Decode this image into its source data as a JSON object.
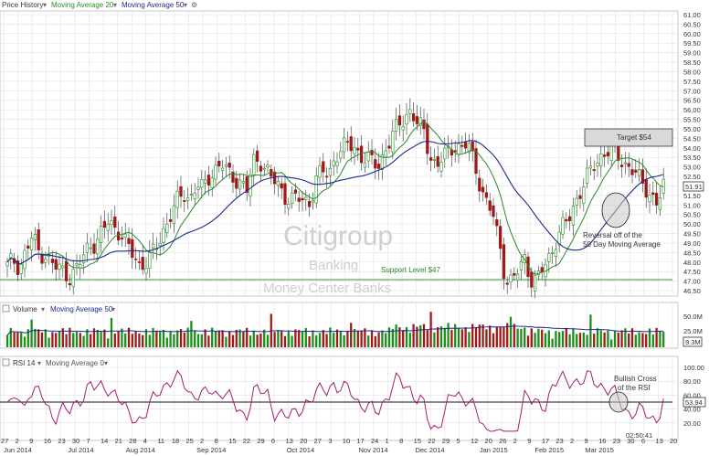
{
  "header": {
    "price_history": "Price History",
    "ma20": "Moving Average 20",
    "ma50": "Moving Average 50",
    "volume": "Volume",
    "vol_ma": "Moving Average 50",
    "rsi": "RSI 14",
    "rsi_ma": "Moving Average 0"
  },
  "watermark": {
    "ticker_name": "Citigroup",
    "sector": "Banking",
    "industry": "Money Center Banks"
  },
  "annotations": {
    "target": "Target $54",
    "support": "Support Level $47",
    "reversal_line1": "Reversal off of the",
    "reversal_line2": "50 Day Moving Average",
    "bullish_line1": "Bullish Cross",
    "bullish_line2": "of the RSI"
  },
  "badges": {
    "last_price": "51.91",
    "volume": "9.3M",
    "rsi": "53.94"
  },
  "timestamp": "02:50:41",
  "colors": {
    "up": "#1a8f1a",
    "down": "#a01818",
    "ma20": "#2a8a2a",
    "ma50": "#1c2a8a",
    "grid": "#e2e2e2",
    "support": "#2a9a2a"
  },
  "chart_data": [
    {
      "type": "candlestick",
      "title": "Price History",
      "ylim": [
        46.5,
        61.0
      ],
      "yticks": [
        "46.50",
        "47.00",
        "47.50",
        "48.00",
        "48.50",
        "49.00",
        "49.50",
        "50.00",
        "50.50",
        "51.00",
        "51.50",
        "52.00",
        "52.50",
        "53.00",
        "53.50",
        "54.00",
        "54.50",
        "55.00",
        "55.50",
        "56.00",
        "56.50",
        "57.00",
        "57.50",
        "58.00",
        "58.50",
        "59.00",
        "59.50",
        "60.00",
        "60.50",
        "61.00"
      ],
      "xticks": [
        "27",
        "2",
        "9",
        "16",
        "23",
        "30",
        "7",
        "14",
        "21",
        "28",
        "4",
        "11",
        "18",
        "25",
        "2",
        "8",
        "15",
        "22",
        "29",
        "6",
        "13",
        "20",
        "27",
        "3",
        "10",
        "17",
        "24",
        "1",
        "8",
        "15",
        "22",
        "29",
        "5",
        "12",
        "20",
        "26",
        "2",
        "9",
        "17",
        "23",
        "2",
        "9",
        "16",
        "23",
        "30",
        "6",
        "13",
        "20"
      ],
      "month_labels": [
        "Jun 2014",
        "Jul 2014",
        "Aug 2014",
        "Sep 2014",
        "Oct 2014",
        "Nov 2014",
        "Dec 2014",
        "Jan 2015",
        "Feb 2015",
        "Mar 2015"
      ],
      "series": [
        {
          "name": "Moving Average 20"
        },
        {
          "name": "Moving Average 50"
        }
      ],
      "key_points": {
        "close": [
          47.8,
          48.1,
          47.7,
          48.6,
          49.4,
          48.5,
          48.4,
          47.9,
          47.7,
          47.5,
          47.2,
          47.6,
          48.3,
          48.9,
          49.0,
          49.5,
          50.2,
          49.8,
          49.5,
          48.8,
          48.4,
          47.8,
          48.0,
          48.4,
          49.1,
          49.8,
          50.6,
          51.2,
          51.6,
          51.3,
          52.1,
          51.8,
          52.5,
          52.9,
          53.2,
          52.6,
          52.4,
          52.2,
          51.8,
          53.2,
          53.4,
          52.9,
          52.4,
          51.9,
          51.5,
          51.3,
          51.4,
          51.1,
          51.2,
          52.4,
          52.8,
          52.5,
          53.7,
          53.9,
          54.2,
          54.0,
          53.6,
          53.4,
          53.2,
          53.1,
          54.0,
          54.6,
          55.2,
          55.6,
          56.0,
          55.2,
          54.9,
          53.6,
          53.0,
          53.5,
          53.8,
          54.2,
          53.9,
          54.3,
          53.1,
          52.1,
          51.0,
          50.5,
          48.9,
          47.1,
          46.9,
          47.6,
          48.2,
          47.1,
          47.0,
          47.8,
          48.3,
          49.2,
          49.8,
          50.3,
          51.1,
          51.9,
          52.5,
          53.1,
          53.5,
          53.9,
          53.7,
          53.5,
          53.1,
          52.9,
          52.4,
          52.0,
          51.5,
          51.1,
          51.91
        ],
        "support": 47.0,
        "target": 54.0
      }
    },
    {
      "type": "bar",
      "title": "Volume",
      "yticks": [
        "50.0M",
        "25.0M"
      ],
      "ylim": [
        0,
        55
      ],
      "moving_average_50_last": "9.3M"
    },
    {
      "type": "line",
      "title": "RSI 14",
      "ylim": [
        0,
        100
      ],
      "yticks": [
        "100.00",
        "80.00",
        "60.00",
        "40.00",
        "20.00"
      ],
      "last_value": 53.94
    }
  ]
}
